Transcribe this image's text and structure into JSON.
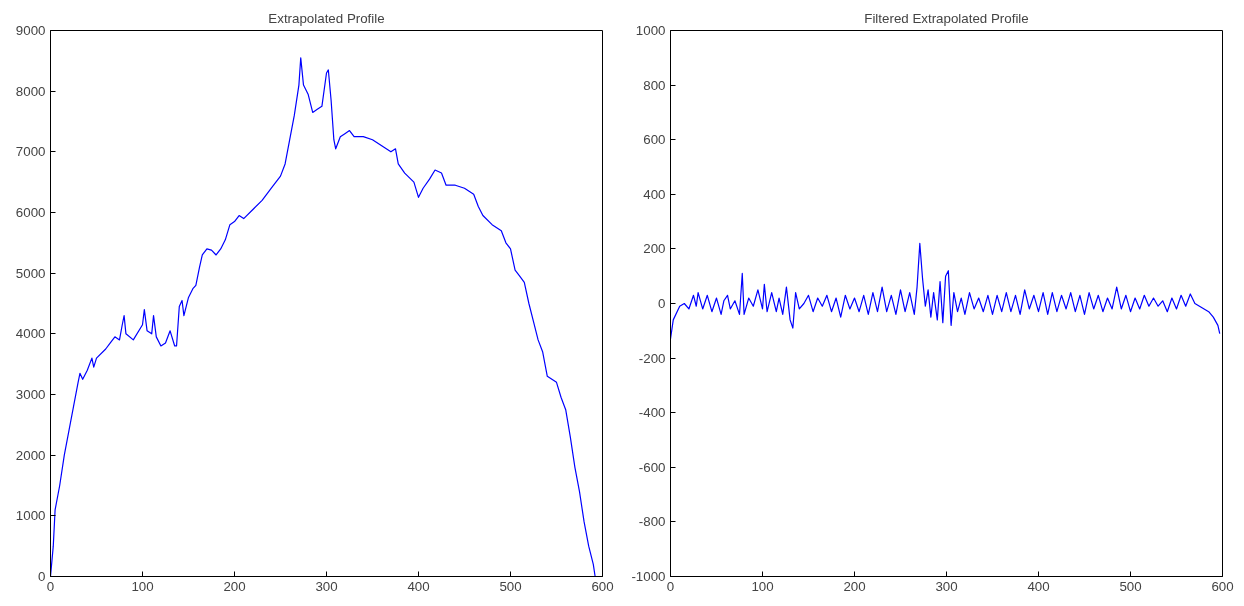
{
  "chart_data": [
    {
      "type": "line",
      "title": "Extrapolated Profile",
      "xlim": [
        0,
        600
      ],
      "ylim": [
        0,
        9000
      ],
      "xticks": [
        0,
        100,
        200,
        300,
        400,
        500,
        600
      ],
      "yticks": [
        0,
        1000,
        2000,
        3000,
        4000,
        5000,
        6000,
        7000,
        8000,
        9000
      ],
      "series": [
        {
          "color": "#0000ff",
          "x": [
            0,
            3,
            5,
            10,
            15,
            20,
            25,
            30,
            32,
            35,
            40,
            45,
            47,
            50,
            60,
            65,
            70,
            75,
            78,
            80,
            82,
            90,
            100,
            102,
            105,
            110,
            112,
            115,
            120,
            125,
            130,
            135,
            137,
            140,
            143,
            145,
            150,
            155,
            158,
            162,
            165,
            170,
            175,
            180,
            185,
            190,
            195,
            200,
            205,
            210,
            220,
            230,
            240,
            245,
            250,
            255,
            260,
            265,
            270,
            272,
            275,
            280,
            285,
            290,
            295,
            300,
            302,
            305,
            308,
            310,
            315,
            320,
            325,
            330,
            340,
            350,
            360,
            370,
            375,
            378,
            385,
            395,
            400,
            405,
            412,
            418,
            425,
            430,
            440,
            450,
            460,
            465,
            470,
            480,
            490,
            495,
            500,
            505,
            510,
            515,
            520,
            525,
            530,
            535,
            540,
            545,
            550,
            555,
            560,
            565,
            570,
            575,
            580,
            585,
            590,
            592
          ],
          "values": [
            0,
            500,
            1100,
            1500,
            2000,
            2400,
            2800,
            3200,
            3350,
            3250,
            3400,
            3600,
            3450,
            3600,
            3750,
            3850,
            3950,
            3900,
            4150,
            4300,
            4000,
            3900,
            4150,
            4400,
            4050,
            4000,
            4300,
            3950,
            3800,
            3850,
            4050,
            3800,
            3800,
            4450,
            4550,
            4300,
            4600,
            4750,
            4800,
            5100,
            5300,
            5400,
            5380,
            5300,
            5400,
            5550,
            5800,
            5850,
            5950,
            5900,
            6050,
            6200,
            6400,
            6500,
            6600,
            6800,
            7200,
            7600,
            8100,
            8550,
            8100,
            7950,
            7650,
            7700,
            7750,
            8300,
            8350,
            7850,
            7200,
            7050,
            7250,
            7300,
            7350,
            7250,
            7250,
            7200,
            7100,
            7000,
            7050,
            6800,
            6650,
            6500,
            6250,
            6400,
            6550,
            6700,
            6650,
            6450,
            6450,
            6400,
            6300,
            6100,
            5950,
            5800,
            5700,
            5500,
            5400,
            5050,
            4950,
            4850,
            4500,
            4200,
            3900,
            3700,
            3300,
            3250,
            3200,
            2950,
            2750,
            2300,
            1800,
            1400,
            900,
            500,
            200,
            0
          ]
        }
      ]
    },
    {
      "type": "line",
      "title": "Filtered Extrapolated Profile",
      "xlim": [
        0,
        600
      ],
      "ylim": [
        -1000,
        1000
      ],
      "xticks": [
        0,
        100,
        200,
        300,
        400,
        500,
        600
      ],
      "yticks": [
        -1000,
        -800,
        -600,
        -400,
        -200,
        0,
        200,
        400,
        600,
        800,
        1000
      ],
      "series": [
        {
          "color": "#0000ff",
          "x": [
            0,
            3,
            10,
            15,
            20,
            25,
            28,
            30,
            35,
            40,
            45,
            50,
            55,
            58,
            62,
            65,
            70,
            75,
            78,
            80,
            85,
            90,
            95,
            100,
            102,
            105,
            110,
            115,
            118,
            122,
            126,
            130,
            133,
            136,
            140,
            145,
            150,
            155,
            160,
            165,
            170,
            175,
            180,
            185,
            190,
            195,
            200,
            205,
            210,
            215,
            220,
            225,
            230,
            235,
            240,
            245,
            250,
            255,
            260,
            265,
            268,
            271,
            274,
            277,
            280,
            283,
            286,
            290,
            293,
            296,
            299,
            302,
            305,
            308,
            312,
            316,
            320,
            325,
            330,
            335,
            340,
            345,
            350,
            355,
            360,
            365,
            370,
            375,
            380,
            385,
            390,
            395,
            400,
            405,
            410,
            415,
            420,
            425,
            430,
            435,
            440,
            445,
            450,
            455,
            460,
            465,
            470,
            475,
            480,
            485,
            490,
            495,
            500,
            505,
            510,
            515,
            520,
            525,
            530,
            535,
            540,
            545,
            550,
            555,
            560,
            565,
            570,
            575,
            580,
            585,
            590,
            595,
            597
          ],
          "values": [
            -130,
            -60,
            -10,
            0,
            -20,
            30,
            -10,
            40,
            -20,
            30,
            -30,
            20,
            -40,
            10,
            30,
            -20,
            10,
            -40,
            110,
            -40,
            20,
            -10,
            50,
            -20,
            70,
            -30,
            40,
            -30,
            20,
            -40,
            60,
            -60,
            -90,
            40,
            -20,
            0,
            30,
            -30,
            20,
            -10,
            30,
            -30,
            20,
            -50,
            30,
            -20,
            20,
            -30,
            30,
            -40,
            40,
            -30,
            60,
            -30,
            30,
            -40,
            50,
            -30,
            40,
            -40,
            60,
            220,
            90,
            -10,
            50,
            -50,
            40,
            -60,
            80,
            -70,
            100,
            120,
            -80,
            40,
            -30,
            20,
            -40,
            40,
            -20,
            20,
            -30,
            30,
            -40,
            30,
            -30,
            40,
            -30,
            30,
            -40,
            50,
            -20,
            30,
            -30,
            40,
            -40,
            40,
            -30,
            30,
            -20,
            40,
            -30,
            30,
            -40,
            40,
            -20,
            30,
            -30,
            20,
            -20,
            60,
            -20,
            30,
            -30,
            20,
            -20,
            30,
            -10,
            20,
            -10,
            10,
            -30,
            20,
            -20,
            30,
            -10,
            35,
            0,
            -10,
            -20,
            -30,
            -50,
            -80,
            -110
          ]
        }
      ]
    }
  ]
}
